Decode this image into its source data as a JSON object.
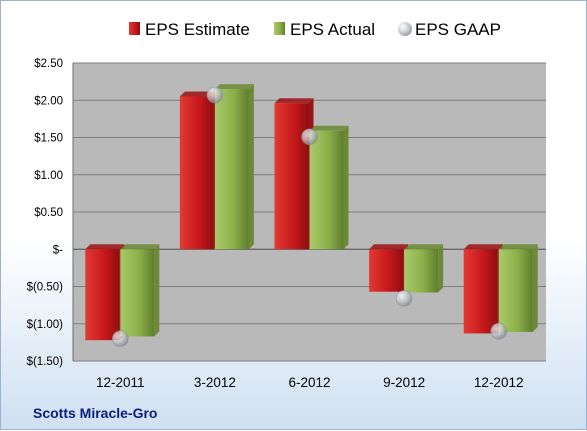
{
  "chart_data": {
    "type": "bar",
    "categories": [
      "12-2011",
      "3-2012",
      "6-2012",
      "9-2012",
      "12-2012"
    ],
    "series": [
      {
        "name": "EPS Estimate",
        "values": [
          -1.22,
          2.05,
          1.96,
          -0.57,
          -1.13
        ],
        "color": "#c8191c"
      },
      {
        "name": "EPS Actual",
        "values": [
          -1.17,
          2.15,
          1.59,
          -0.58,
          -1.11
        ],
        "color": "#8db04a"
      }
    ],
    "scatter_series": {
      "name": "EPS GAAP",
      "values": [
        -1.2,
        2.07,
        1.51,
        -0.66,
        -1.1
      ],
      "color": "#b8bcc4"
    },
    "y_ticks": [
      {
        "value": 2.5,
        "label": "$2.50"
      },
      {
        "value": 2.0,
        "label": "$2.00"
      },
      {
        "value": 1.5,
        "label": "$1.50"
      },
      {
        "value": 1.0,
        "label": "$1.00"
      },
      {
        "value": 0.5,
        "label": "$0.50"
      },
      {
        "value": 0.0,
        "label": "$-"
      },
      {
        "value": -0.5,
        "label": "$(0.50)"
      },
      {
        "value": -1.0,
        "label": "$(1.00)"
      },
      {
        "value": -1.5,
        "label": "$(1.50)"
      }
    ],
    "ylim": [
      -1.5,
      2.5
    ],
    "grid": true,
    "legend_position": "top"
  },
  "footer": {
    "company": "Scotts Miracle-Gro"
  },
  "colors": {
    "plot_background": "#b9b9b9",
    "grid": "#7f7f7f"
  }
}
